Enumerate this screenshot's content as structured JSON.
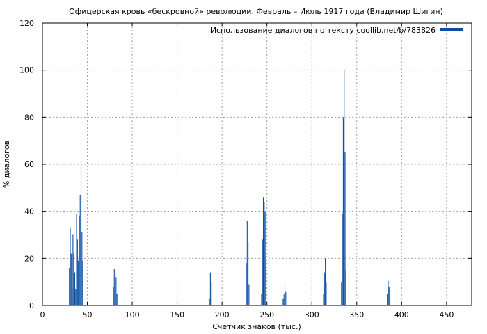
{
  "chart_data": {
    "type": "bar",
    "title": "Офицерская кровь «бескровной» революции. Февраль – Июль 1917 года (Владимир Шигин)",
    "xlabel": "Счетчик знаков (тыс.)",
    "ylabel": "% диалогов",
    "xlim": [
      0,
      478
    ],
    "ylim": [
      0,
      120
    ],
    "xticks": [
      0,
      50,
      100,
      150,
      200,
      250,
      300,
      350,
      400,
      450
    ],
    "yticks": [
      0,
      20,
      40,
      60,
      80,
      100,
      120
    ],
    "grid": true,
    "legend_position": "top-right",
    "series": [
      {
        "name": "Использование диалогов по тексту coollib.net/b/783826",
        "color": "#0b4ea2",
        "points": [
          {
            "x": 30,
            "y": 16
          },
          {
            "x": 31,
            "y": 33
          },
          {
            "x": 32,
            "y": 22
          },
          {
            "x": 33,
            "y": 8
          },
          {
            "x": 34,
            "y": 30
          },
          {
            "x": 35,
            "y": 22
          },
          {
            "x": 36,
            "y": 14
          },
          {
            "x": 37,
            "y": 7
          },
          {
            "x": 38,
            "y": 39
          },
          {
            "x": 39,
            "y": 28
          },
          {
            "x": 40,
            "y": 19
          },
          {
            "x": 41,
            "y": 38
          },
          {
            "x": 42,
            "y": 47
          },
          {
            "x": 43,
            "y": 62
          },
          {
            "x": 44,
            "y": 31
          },
          {
            "x": 45,
            "y": 19
          },
          {
            "x": 79,
            "y": 8
          },
          {
            "x": 80,
            "y": 15.5
          },
          {
            "x": 81,
            "y": 14
          },
          {
            "x": 82,
            "y": 12
          },
          {
            "x": 83,
            "y": 5
          },
          {
            "x": 186,
            "y": 3
          },
          {
            "x": 187,
            "y": 14
          },
          {
            "x": 188,
            "y": 10
          },
          {
            "x": 227,
            "y": 18
          },
          {
            "x": 228,
            "y": 36
          },
          {
            "x": 229,
            "y": 27
          },
          {
            "x": 230,
            "y": 9
          },
          {
            "x": 244,
            "y": 5
          },
          {
            "x": 245,
            "y": 28
          },
          {
            "x": 246,
            "y": 46
          },
          {
            "x": 247,
            "y": 44
          },
          {
            "x": 248,
            "y": 40
          },
          {
            "x": 249,
            "y": 19
          },
          {
            "x": 268,
            "y": 3
          },
          {
            "x": 269,
            "y": 5
          },
          {
            "x": 270,
            "y": 8.5
          },
          {
            "x": 271,
            "y": 6
          },
          {
            "x": 313,
            "y": 5
          },
          {
            "x": 314,
            "y": 14
          },
          {
            "x": 315,
            "y": 20
          },
          {
            "x": 316,
            "y": 10
          },
          {
            "x": 333,
            "y": 10
          },
          {
            "x": 334,
            "y": 39
          },
          {
            "x": 335,
            "y": 80
          },
          {
            "x": 336,
            "y": 100
          },
          {
            "x": 337,
            "y": 65
          },
          {
            "x": 338,
            "y": 15
          },
          {
            "x": 384,
            "y": 5
          },
          {
            "x": 385,
            "y": 10.5
          },
          {
            "x": 386,
            "y": 8
          },
          {
            "x": 387,
            "y": 3
          }
        ]
      }
    ]
  }
}
